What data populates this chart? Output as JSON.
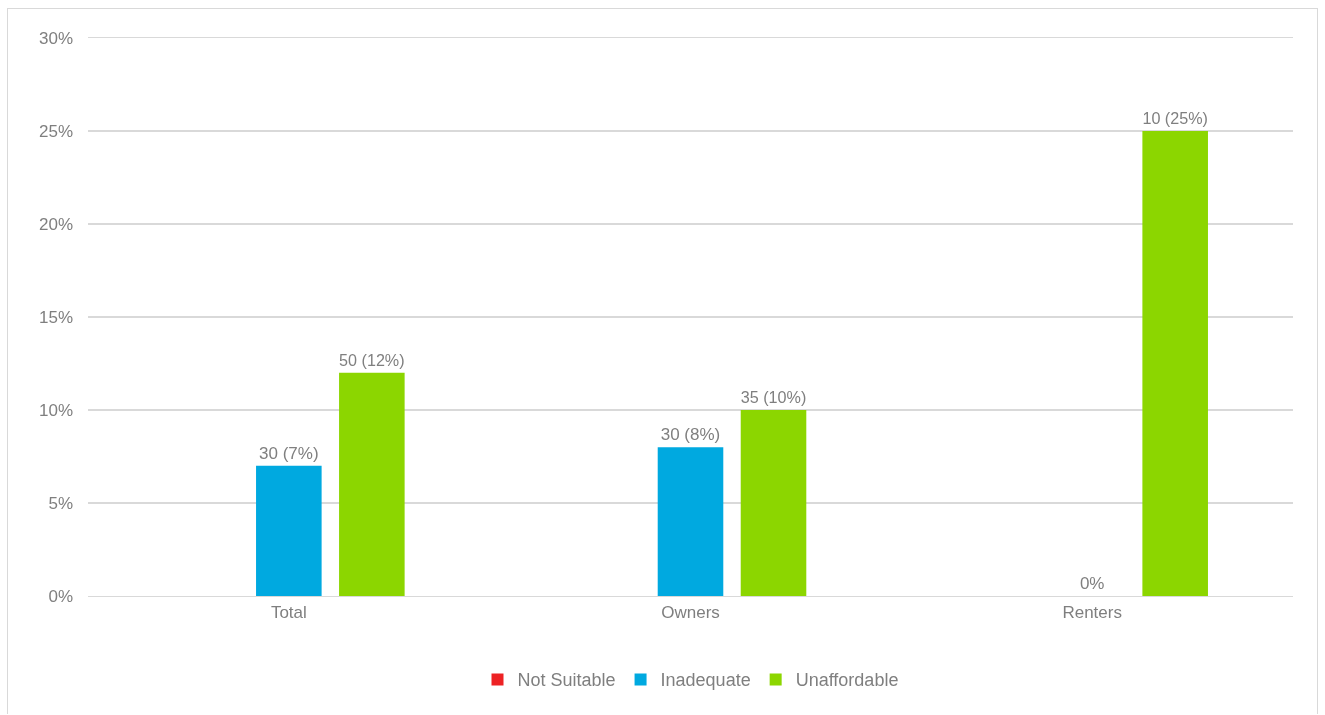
{
  "chart_data": {
    "type": "bar",
    "categories": [
      "Total",
      "Owners",
      "Renters"
    ],
    "series": [
      {
        "name": "Not Suitable",
        "color": "#ed2224",
        "values": [
          null,
          null,
          null
        ]
      },
      {
        "name": "Inadequate",
        "color": "#00a9e0",
        "values": [
          7,
          8,
          0
        ],
        "value_labels": [
          "30 (7%)",
          "30 (8%)",
          "0%"
        ]
      },
      {
        "name": "Unaffordable",
        "color": "#8cd600",
        "values": [
          12,
          10,
          25
        ],
        "value_labels": [
          "50 (12%)",
          "35 (10%)",
          "10 (25%)"
        ]
      }
    ],
    "ylim": [
      0,
      30
    ],
    "yticks": [
      {
        "value": 0,
        "label": "0%"
      },
      {
        "value": 5,
        "label": "5%"
      },
      {
        "value": 10,
        "label": "10%"
      },
      {
        "value": 15,
        "label": "15%"
      },
      {
        "value": 20,
        "label": "20%"
      },
      {
        "value": 25,
        "label": "25%"
      },
      {
        "value": 30,
        "label": "30%"
      }
    ],
    "grid": "y",
    "legend": "bottom"
  }
}
